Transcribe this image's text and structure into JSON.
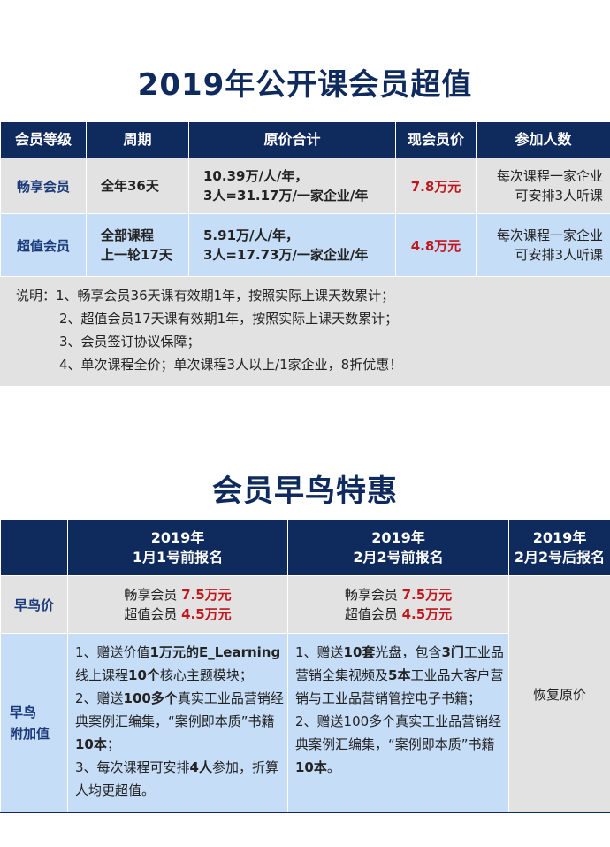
{
  "title1": "2019年公开课会员超值",
  "table1": {
    "headers": [
      "会员等级",
      "周期",
      "原价合计",
      "现会员价",
      "参加人数"
    ],
    "rows": [
      {
        "level": "畅享会员",
        "period": [
          "全年36天"
        ],
        "original": [
          "10.39万/人/年，",
          "3人=31.17万/一家企业/年"
        ],
        "price": "7.8万元",
        "people": [
          "每次课程一家企业",
          "可安排3人听课"
        ]
      },
      {
        "level": "超值会员",
        "period": [
          "全部课程",
          "上一轮17天"
        ],
        "original": [
          "5.91万/人/年，",
          "3人=17.73万/一家企业/年"
        ],
        "price": "4.8万元",
        "people": [
          "每次课程一家企业",
          "可安排3人听课"
        ]
      }
    ]
  },
  "notes": [
    "说明：1、畅享会员36天课有效期1年，按照实际上课天数累计；",
    "2、超值会员17天课有效期1年，按照实际上课天数累计；",
    "3、会员签订协议保障；",
    "4、单次课程全价；单次课程3人以上/1家企业，8折优惠！"
  ],
  "title2": "会员早鸟特惠",
  "table2": {
    "headers": [
      [
        "",
        ""
      ],
      [
        "2019年",
        "1月1号前报名"
      ],
      [
        "2019年",
        "2月2号前报名"
      ],
      [
        "2019年",
        "2月2号后报名"
      ]
    ],
    "row_price": {
      "label": "早鸟价",
      "cols": [
        {
          "items": [
            {
              "name": "畅享会员",
              "price": "7.5万元"
            },
            {
              "name": "超值会员",
              "price": "4.5万元"
            }
          ]
        },
        {
          "items": [
            {
              "name": "畅享会员",
              "price": "7.5万元"
            },
            {
              "name": "超值会员",
              "price": "4.5万元"
            }
          ]
        }
      ]
    },
    "row_value": {
      "label": [
        "早鸟",
        "附加值"
      ],
      "cols": [
        [
          [
            {
              "t": "1、赠送价值"
            },
            {
              "t": "1万元的E_Learning",
              "b": true
            },
            {
              "t": "线上课程"
            },
            {
              "t": "10个",
              "b": true
            },
            {
              "t": "核心主题模块；"
            }
          ],
          [
            {
              "t": "2、赠送"
            },
            {
              "t": "100多个",
              "b": true
            },
            {
              "t": "真实工业品营销经典案例汇编集，“案例即本质”书籍"
            },
            {
              "t": "10本",
              "b": true
            },
            {
              "t": "；"
            }
          ],
          [
            {
              "t": "3、每次课程可安排"
            },
            {
              "t": "4人",
              "b": true
            },
            {
              "t": "参加，折算人均更超值。"
            }
          ]
        ],
        [
          [
            {
              "t": "1、赠送"
            },
            {
              "t": "10套",
              "b": true
            },
            {
              "t": "光盘，包含"
            },
            {
              "t": "3门",
              "b": true
            },
            {
              "t": "工业品营销全集视频及"
            },
            {
              "t": "5本",
              "b": true
            },
            {
              "t": "工业品大客户营销与工业品营销管控电子书籍；"
            }
          ],
          [
            {
              "t": "2、赠送100多个真实工业品营销经典案例汇编集，“案例即本质”书籍"
            },
            {
              "t": "10本",
              "b": true
            },
            {
              "t": "。"
            }
          ]
        ]
      ]
    },
    "restore": "恢复原价"
  }
}
